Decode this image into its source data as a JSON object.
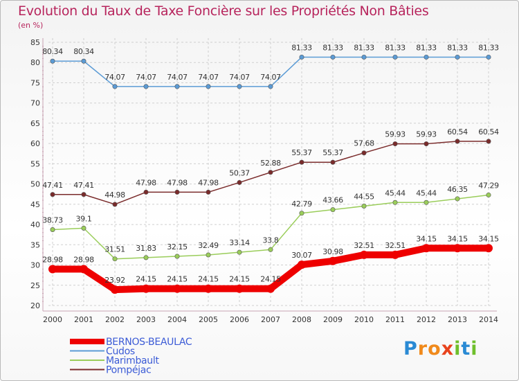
{
  "title": "Evolution du Taux de Taxe Foncière sur les Propriétés Non Bâties",
  "unit_label": "(en %)",
  "logo_text": "Proxiti",
  "colors": {
    "title": "#b7245c",
    "grid": "#cfcfcf",
    "axis": "#c8a3b3"
  },
  "chart_data": {
    "type": "line",
    "x": [
      "2000",
      "2001",
      "2002",
      "2003",
      "2004",
      "2005",
      "2006",
      "2007",
      "2008",
      "2009",
      "2010",
      "2011",
      "2012",
      "2013",
      "2014"
    ],
    "ylim": [
      20,
      85
    ],
    "yticks": [
      20,
      25,
      30,
      35,
      40,
      45,
      50,
      55,
      60,
      65,
      70,
      75,
      80,
      85
    ],
    "grid": true,
    "legend_position": "bottom-left",
    "series": [
      {
        "name": "BERNOS-BEAULAC",
        "color": "#ee0000",
        "emphasis": true,
        "values": [
          28.98,
          28.98,
          23.92,
          24.15,
          24.15,
          24.15,
          24.15,
          24.15,
          30.07,
          30.98,
          32.51,
          32.51,
          34.15,
          34.15,
          34.15
        ],
        "labels": [
          "28.98",
          "28.98",
          "23.92",
          "24.15",
          "24.15",
          "24.15",
          "24.15",
          "24.15",
          "30.07",
          "30.98",
          "32.51",
          "32.51",
          "34.15",
          "34.15",
          "34.15"
        ]
      },
      {
        "name": "Cudos",
        "color": "#5b9bd5",
        "emphasis": false,
        "values": [
          80.34,
          80.34,
          74.07,
          74.07,
          74.07,
          74.07,
          74.07,
          74.07,
          81.33,
          81.33,
          81.33,
          81.33,
          81.33,
          81.33,
          81.33
        ],
        "labels": [
          "80.34",
          "80.34",
          "74.07",
          "74.07",
          "74.07",
          "74.07",
          "74.07",
          "74.07",
          "81.33",
          "81.33",
          "81.33",
          "81.33",
          "81.33",
          "81.33",
          "81.33"
        ]
      },
      {
        "name": "Marimbault",
        "color": "#9acd5a",
        "emphasis": false,
        "values": [
          38.73,
          39.1,
          31.51,
          31.83,
          32.15,
          32.49,
          33.14,
          33.8,
          42.79,
          43.66,
          44.55,
          45.44,
          45.44,
          46.35,
          47.29
        ],
        "labels": [
          "38.73",
          "39.1",
          "31.51",
          "31.83",
          "32.15",
          "32.49",
          "33.14",
          "33.8",
          "42.79",
          "43.66",
          "44.55",
          "45.44",
          "45.44",
          "46.35",
          "47.29"
        ]
      },
      {
        "name": "Pompéjac",
        "color": "#7a2b2b",
        "emphasis": false,
        "values": [
          47.41,
          47.41,
          44.98,
          47.98,
          47.98,
          47.98,
          50.37,
          52.88,
          55.37,
          55.37,
          57.68,
          59.93,
          59.93,
          60.54,
          60.54
        ],
        "labels": [
          "47.41",
          "47.41",
          "44.98",
          "47.98",
          "47.98",
          "47.98",
          "50.37",
          "52.88",
          "55.37",
          "55.37",
          "57.68",
          "59.93",
          "59.93",
          "60.54",
          "60.54"
        ]
      }
    ]
  }
}
